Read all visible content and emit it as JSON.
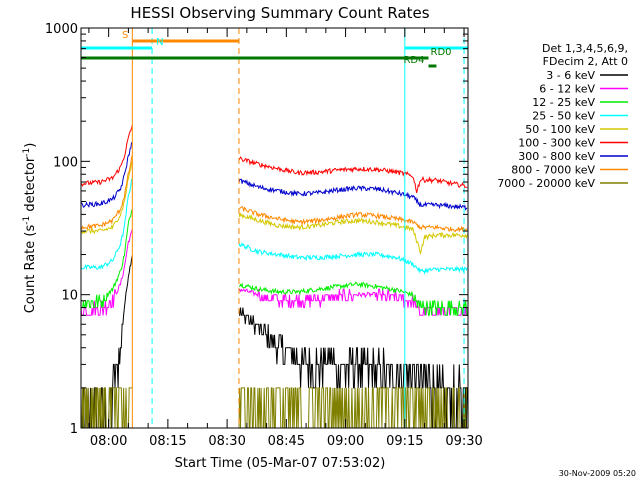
{
  "chart_data": {
    "type": "line",
    "title": "HESSI Observing Summary Count Rates",
    "xlabel": "Start Time (05-Mar-07 07:53:02)",
    "ylabel_html": [
      "Count Rate (s",
      "-1",
      " detector",
      "-1",
      ")"
    ],
    "ylog": true,
    "ylim": [
      1,
      1000
    ],
    "xlim_minutes": [
      0,
      98
    ],
    "x_ticks": [
      {
        "label": "08:00",
        "t": 7
      },
      {
        "label": "08:15",
        "t": 22
      },
      {
        "label": "08:30",
        "t": 37
      },
      {
        "label": "08:45",
        "t": 52
      },
      {
        "label": "09:00",
        "t": 67
      },
      {
        "label": "09:15",
        "t": 82
      },
      {
        "label": "09:30",
        "t": 97
      }
    ],
    "y_ticks": [
      {
        "label": "1",
        "v": 1
      },
      {
        "label": "10",
        "v": 10
      },
      {
        "label": "100",
        "v": 100
      },
      {
        "label": "1000",
        "v": 1000
      }
    ],
    "legend_header": [
      "Det 1,3,4,5,6,9,",
      "FDecim 2, Att 0"
    ],
    "legend_placement": "right",
    "timestamp": "30-Nov-2009 05:20",
    "series": [
      {
        "name": "3 - 6 keV",
        "color": "#000000",
        "gap": [
          13,
          40
        ],
        "v": [
          [
            0,
            1
          ],
          [
            5,
            1
          ],
          [
            8,
            1.8
          ],
          [
            10,
            4
          ],
          [
            11,
            8
          ],
          [
            12,
            14
          ],
          [
            13,
            20
          ],
          [
            40,
            7.5
          ],
          [
            44,
            6
          ],
          [
            47,
            5
          ],
          [
            50,
            4
          ],
          [
            53,
            3.5
          ],
          [
            56,
            3
          ],
          [
            60,
            3
          ],
          [
            63,
            3.2
          ],
          [
            66,
            2.8
          ],
          [
            70,
            2.8
          ],
          [
            75,
            2.7
          ],
          [
            80,
            2.7
          ],
          [
            85,
            2.5
          ],
          [
            88,
            2.2
          ],
          [
            90,
            1.8
          ],
          [
            94,
            1.6
          ],
          [
            98,
            1.5
          ]
        ]
      },
      {
        "name": "6 - 12 keV",
        "color": "#ff00ff",
        "gap": [
          13,
          40
        ],
        "v": [
          [
            0,
            7.5
          ],
          [
            5,
            7.8
          ],
          [
            8,
            9
          ],
          [
            10,
            12
          ],
          [
            11,
            16
          ],
          [
            12,
            25
          ],
          [
            13,
            30
          ],
          [
            40,
            11
          ],
          [
            45,
            10
          ],
          [
            50,
            9
          ],
          [
            55,
            9
          ],
          [
            60,
            9.3
          ],
          [
            65,
            9.7
          ],
          [
            70,
            10
          ],
          [
            75,
            10
          ],
          [
            80,
            9.5
          ],
          [
            84,
            9
          ],
          [
            86,
            7.5
          ],
          [
            90,
            7.5
          ],
          [
            94,
            7.5
          ],
          [
            98,
            7.5
          ]
        ]
      },
      {
        "name": "12 - 25 keV",
        "color": "#00ee00",
        "gap": [
          13,
          40
        ],
        "v": [
          [
            0,
            8.5
          ],
          [
            5,
            9
          ],
          [
            8,
            11
          ],
          [
            10,
            15
          ],
          [
            11,
            20
          ],
          [
            12,
            34
          ],
          [
            13,
            45
          ],
          [
            40,
            12
          ],
          [
            45,
            11
          ],
          [
            50,
            10.5
          ],
          [
            55,
            10.5
          ],
          [
            60,
            11
          ],
          [
            65,
            11.5
          ],
          [
            70,
            12
          ],
          [
            75,
            11.5
          ],
          [
            80,
            10.8
          ],
          [
            84,
            10
          ],
          [
            86,
            8
          ],
          [
            90,
            8
          ],
          [
            94,
            8
          ],
          [
            98,
            8
          ]
        ]
      },
      {
        "name": "25 - 50 keV",
        "color": "#00ffff",
        "gap": [
          13,
          40
        ],
        "v": [
          [
            0,
            16
          ],
          [
            5,
            16
          ],
          [
            8,
            18
          ],
          [
            10,
            24
          ],
          [
            11,
            32
          ],
          [
            12,
            55
          ],
          [
            13,
            75
          ],
          [
            40,
            24
          ],
          [
            45,
            21
          ],
          [
            50,
            20
          ],
          [
            55,
            19
          ],
          [
            60,
            19
          ],
          [
            65,
            19.5
          ],
          [
            70,
            20
          ],
          [
            75,
            20
          ],
          [
            80,
            19
          ],
          [
            84,
            17
          ],
          [
            86,
            15
          ],
          [
            90,
            15.5
          ],
          [
            94,
            15.5
          ],
          [
            98,
            15.5
          ]
        ]
      },
      {
        "name": "50 - 100 keV",
        "color": "#d4c800",
        "gap": [
          13,
          40
        ],
        "v": [
          [
            0,
            30
          ],
          [
            5,
            30
          ],
          [
            8,
            32
          ],
          [
            10,
            40
          ],
          [
            11,
            50
          ],
          [
            12,
            75
          ],
          [
            13,
            100
          ],
          [
            40,
            40
          ],
          [
            45,
            36
          ],
          [
            50,
            33
          ],
          [
            55,
            32
          ],
          [
            60,
            33
          ],
          [
            65,
            35
          ],
          [
            70,
            36
          ],
          [
            75,
            35
          ],
          [
            80,
            33
          ],
          [
            84,
            31
          ],
          [
            86,
            21
          ],
          [
            87,
            27
          ],
          [
            90,
            28
          ],
          [
            94,
            28
          ],
          [
            98,
            28
          ]
        ]
      },
      {
        "name": "100 - 300 keV",
        "color": "#ff0000",
        "gap": [
          13,
          40
        ],
        "v": [
          [
            0,
            68
          ],
          [
            5,
            70
          ],
          [
            8,
            75
          ],
          [
            10,
            90
          ],
          [
            11,
            110
          ],
          [
            12,
            150
          ],
          [
            13,
            185
          ],
          [
            40,
            105
          ],
          [
            45,
            95
          ],
          [
            50,
            88
          ],
          [
            55,
            82
          ],
          [
            60,
            83
          ],
          [
            65,
            86
          ],
          [
            70,
            88
          ],
          [
            75,
            87
          ],
          [
            80,
            83
          ],
          [
            84,
            78
          ],
          [
            85,
            60
          ],
          [
            86,
            73
          ],
          [
            90,
            72
          ],
          [
            94,
            68
          ],
          [
            98,
            65
          ]
        ]
      },
      {
        "name": "300 - 800 keV",
        "color": "#0000cc",
        "gap": [
          13,
          40
        ],
        "v": [
          [
            0,
            47
          ],
          [
            5,
            48
          ],
          [
            8,
            52
          ],
          [
            10,
            62
          ],
          [
            11,
            78
          ],
          [
            12,
            110
          ],
          [
            13,
            140
          ],
          [
            40,
            72
          ],
          [
            45,
            64
          ],
          [
            50,
            60
          ],
          [
            55,
            57
          ],
          [
            60,
            58
          ],
          [
            65,
            61
          ],
          [
            70,
            63
          ],
          [
            75,
            62
          ],
          [
            80,
            58
          ],
          [
            84,
            54
          ],
          [
            86,
            47
          ],
          [
            90,
            47
          ],
          [
            94,
            46
          ],
          [
            98,
            45
          ]
        ]
      },
      {
        "name": "800 - 7000 keV",
        "color": "#ff8800",
        "gap": [
          13,
          40
        ],
        "v": [
          [
            0,
            32
          ],
          [
            5,
            33
          ],
          [
            8,
            36
          ],
          [
            10,
            44
          ],
          [
            11,
            55
          ],
          [
            12,
            80
          ],
          [
            13,
            110
          ],
          [
            40,
            45
          ],
          [
            45,
            40
          ],
          [
            50,
            37
          ],
          [
            55,
            35
          ],
          [
            60,
            36
          ],
          [
            65,
            38
          ],
          [
            70,
            40
          ],
          [
            75,
            39
          ],
          [
            80,
            37
          ],
          [
            84,
            35
          ],
          [
            86,
            32
          ],
          [
            90,
            32
          ],
          [
            94,
            31
          ],
          [
            98,
            31
          ]
        ]
      },
      {
        "name": "7000 - 20000 keV",
        "color": "#808000",
        "gap": [
          13,
          40
        ],
        "v": [
          [
            0,
            1.6
          ],
          [
            98,
            1.6
          ]
        ]
      }
    ],
    "bars": [
      {
        "label": "S",
        "color": "#ff8800",
        "t0": 13,
        "t1": 40,
        "y": 41,
        "label_side": "left"
      },
      {
        "label": "N",
        "color": "#00ffff",
        "t0": 0,
        "t1": 18,
        "y": 48,
        "label_side": "right-of-end"
      },
      {
        "label": "",
        "color": "#00ffff",
        "t0": 82,
        "t1": 98,
        "y": 48
      },
      {
        "label": "",
        "color": "#007700",
        "t0": 0,
        "t1": 86,
        "y": 58
      },
      {
        "label": "RD0",
        "color": "#007700",
        "t0": 86,
        "t1": 88,
        "y": 58,
        "label_side": "right"
      },
      {
        "label": "RD4",
        "color": "#007700",
        "t0": 88,
        "t1": 90,
        "y": 66,
        "label_side": "left"
      }
    ],
    "vlines": [
      {
        "t": 13,
        "color": "#ff8800",
        "style": "solid"
      },
      {
        "t": 18,
        "color": "#00ffff",
        "style": "dashed"
      },
      {
        "t": 40,
        "color": "#ff8800",
        "style": "dashed"
      },
      {
        "t": 82,
        "color": "#00ffff",
        "style": "solid"
      },
      {
        "t": 97,
        "color": "#00ffff",
        "style": "dashed"
      },
      {
        "t": 0,
        "color": "#00ffff",
        "style": "solid"
      }
    ]
  }
}
